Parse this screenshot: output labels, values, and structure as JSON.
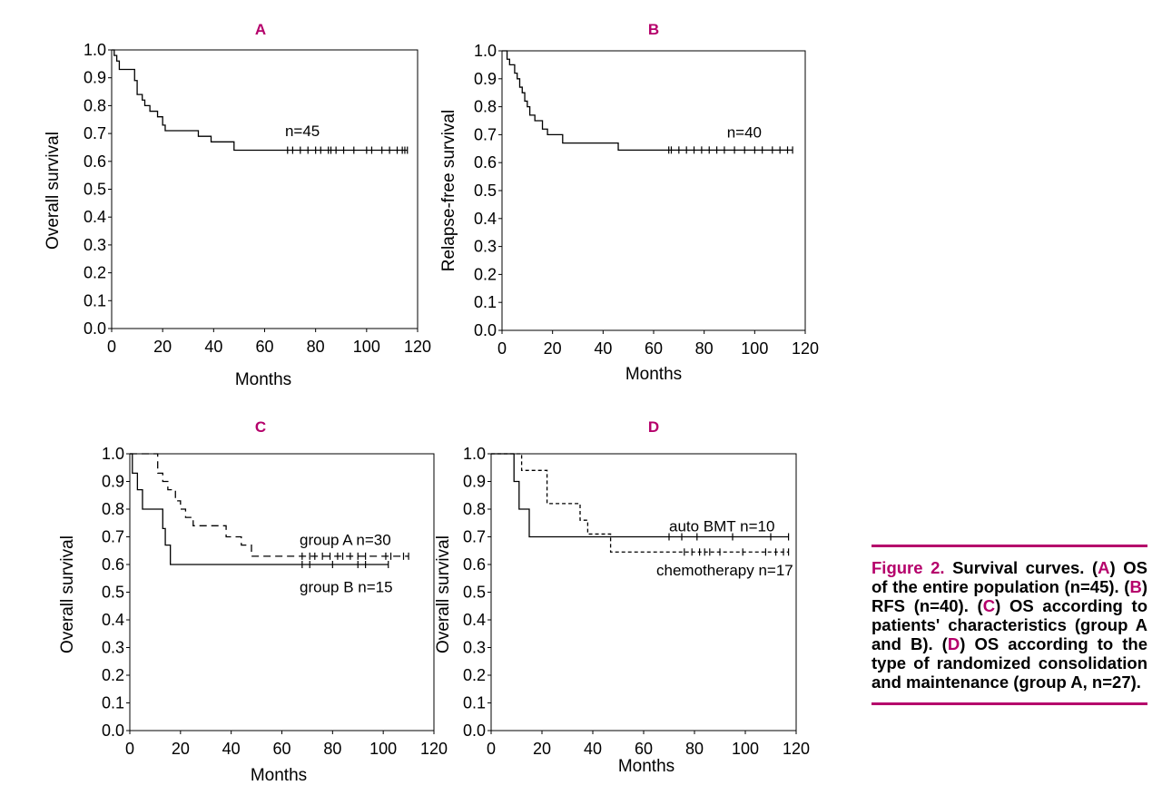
{
  "figure": {
    "accent_color": "#b5006b",
    "caption": {
      "title": "Figure 2.",
      "parts": [
        {
          "t": "  Survival curves. (",
          "hl": false
        },
        {
          "t": "A",
          "hl": true
        },
        {
          "t": ") OS of the entire population (n=45). (",
          "hl": false
        },
        {
          "t": "B",
          "hl": true
        },
        {
          "t": ") RFS (n=40). (",
          "hl": false
        },
        {
          "t": "C",
          "hl": true
        },
        {
          "t": ") OS according to patients' characteristics (group A and B). (",
          "hl": false
        },
        {
          "t": "D",
          "hl": true
        },
        {
          "t": ") OS according to the type of randomized consolidation and maintenance (group A, n=27).",
          "hl": false
        }
      ]
    }
  },
  "chart_data": [
    {
      "type": "line",
      "panel_label": "A",
      "xlabel": "Months",
      "ylabel": "Overall survival",
      "xlim": [
        0,
        120
      ],
      "ylim": [
        0,
        1
      ],
      "xticks": [
        0,
        20,
        40,
        60,
        80,
        100,
        120
      ],
      "yticks": [
        "0.0",
        "0.1",
        "0.2",
        "0.3",
        "0.4",
        "0.5",
        "0.6",
        "0.7",
        "0.8",
        "0.9",
        "1.0"
      ],
      "grid": false,
      "series": [
        {
          "name": "n=45",
          "dash": "solid",
          "steps": [
            [
              0,
              1.0
            ],
            [
              1,
              0.98
            ],
            [
              2,
              0.96
            ],
            [
              3,
              0.93
            ],
            [
              9,
              0.89
            ],
            [
              10,
              0.84
            ],
            [
              12,
              0.82
            ],
            [
              13,
              0.8
            ],
            [
              15,
              0.78
            ],
            [
              18,
              0.76
            ],
            [
              20,
              0.73
            ],
            [
              21,
              0.71
            ],
            [
              34,
              0.69
            ],
            [
              39,
              0.67
            ],
            [
              48,
              0.64
            ],
            [
              116,
              0.64
            ]
          ],
          "censor": [
            69,
            71,
            74,
            77,
            80,
            82,
            85,
            86,
            88,
            91,
            95,
            100,
            102,
            106,
            109,
            112,
            114,
            115,
            116
          ],
          "label": "n=45",
          "label_at": [
            68,
            0.69
          ]
        }
      ]
    },
    {
      "type": "line",
      "panel_label": "B",
      "xlabel": "Months",
      "ylabel": "Relapse-free survival",
      "xlim": [
        0,
        120
      ],
      "ylim": [
        0,
        1
      ],
      "xticks": [
        0,
        20,
        40,
        60,
        80,
        100,
        120
      ],
      "yticks": [
        "0.0",
        "0.1",
        "0.2",
        "0.3",
        "0.4",
        "0.5",
        "0.6",
        "0.7",
        "0.8",
        "0.9",
        "1.0"
      ],
      "grid": false,
      "series": [
        {
          "name": "n=40",
          "dash": "solid",
          "steps": [
            [
              0,
              1.0
            ],
            [
              2,
              0.97
            ],
            [
              3,
              0.95
            ],
            [
              5,
              0.92
            ],
            [
              6,
              0.9
            ],
            [
              7,
              0.87
            ],
            [
              8,
              0.85
            ],
            [
              9,
              0.82
            ],
            [
              10,
              0.8
            ],
            [
              11,
              0.77
            ],
            [
              13,
              0.75
            ],
            [
              16,
              0.72
            ],
            [
              18,
              0.7
            ],
            [
              24,
              0.67
            ],
            [
              46,
              0.645
            ],
            [
              115,
              0.645
            ]
          ],
          "censor": [
            66,
            67,
            70,
            73,
            76,
            79,
            82,
            85,
            88,
            92,
            96,
            100,
            103,
            107,
            110,
            113,
            115
          ],
          "label": "n=40",
          "label_at": [
            89,
            0.69
          ]
        }
      ]
    },
    {
      "type": "line",
      "panel_label": "C",
      "xlabel": "Months",
      "ylabel": "Overall survival",
      "xlim": [
        0,
        120
      ],
      "ylim": [
        0,
        1
      ],
      "xticks": [
        0,
        20,
        40,
        60,
        80,
        100,
        120
      ],
      "yticks": [
        "0.0",
        "0.1",
        "0.2",
        "0.3",
        "0.4",
        "0.5",
        "0.6",
        "0.7",
        "0.8",
        "0.9",
        "1.0"
      ],
      "grid": false,
      "series": [
        {
          "name": "group A n=30",
          "dash": "dashed",
          "steps": [
            [
              0,
              1.0
            ],
            [
              10,
              1.0
            ],
            [
              11,
              0.93
            ],
            [
              13,
              0.9
            ],
            [
              15,
              0.87
            ],
            [
              18,
              0.83
            ],
            [
              20,
              0.8
            ],
            [
              22,
              0.77
            ],
            [
              25,
              0.74
            ],
            [
              38,
              0.7
            ],
            [
              44,
              0.67
            ],
            [
              48,
              0.63
            ],
            [
              110,
              0.63
            ]
          ],
          "censor": [
            68,
            71,
            73,
            76,
            79,
            82,
            84,
            87,
            90,
            93,
            101,
            103,
            108,
            110
          ],
          "label": "group A n=30",
          "label_at": [
            67,
            0.67
          ]
        },
        {
          "name": "group B n=15",
          "dash": "solid",
          "steps": [
            [
              0,
              1.0
            ],
            [
              1,
              0.93
            ],
            [
              3,
              0.87
            ],
            [
              5,
              0.8
            ],
            [
              13,
              0.73
            ],
            [
              14,
              0.67
            ],
            [
              16,
              0.6
            ],
            [
              102,
              0.6
            ]
          ],
          "censor": [
            68,
            71,
            80,
            90,
            93,
            102
          ],
          "label": "group B n=15",
          "label_at": [
            67,
            0.5
          ]
        }
      ]
    },
    {
      "type": "line",
      "panel_label": "D",
      "xlabel": "Months",
      "ylabel": "Overall survival",
      "xlim": [
        0,
        120
      ],
      "ylim": [
        0,
        1
      ],
      "xticks": [
        0,
        20,
        40,
        60,
        80,
        100,
        120
      ],
      "yticks": [
        "0.0",
        "0.1",
        "0.2",
        "0.3",
        "0.4",
        "0.5",
        "0.6",
        "0.7",
        "0.8",
        "0.9",
        "1.0"
      ],
      "grid": false,
      "series": [
        {
          "name": "auto BMT n=10",
          "dash": "solid",
          "steps": [
            [
              0,
              1.0
            ],
            [
              8,
              1.0
            ],
            [
              9,
              0.9
            ],
            [
              11,
              0.8
            ],
            [
              15,
              0.7
            ],
            [
              117,
              0.7
            ]
          ],
          "censor": [
            70,
            75,
            81,
            95,
            110,
            117
          ],
          "label": "auto BMT n=10",
          "label_at": [
            70,
            0.72
          ]
        },
        {
          "name": "chemotherapy n=17",
          "dash": "dotted",
          "steps": [
            [
              0,
              1.0
            ],
            [
              11,
              1.0
            ],
            [
              12,
              0.94
            ],
            [
              22,
              0.82
            ],
            [
              35,
              0.76
            ],
            [
              38,
              0.71
            ],
            [
              47,
              0.645
            ],
            [
              117,
              0.645
            ]
          ],
          "censor": [
            76,
            79,
            82,
            84,
            86,
            90,
            99,
            108,
            112,
            115,
            117
          ],
          "label": "chemotherapy n=17",
          "label_at": [
            65,
            0.56
          ]
        }
      ]
    }
  ]
}
